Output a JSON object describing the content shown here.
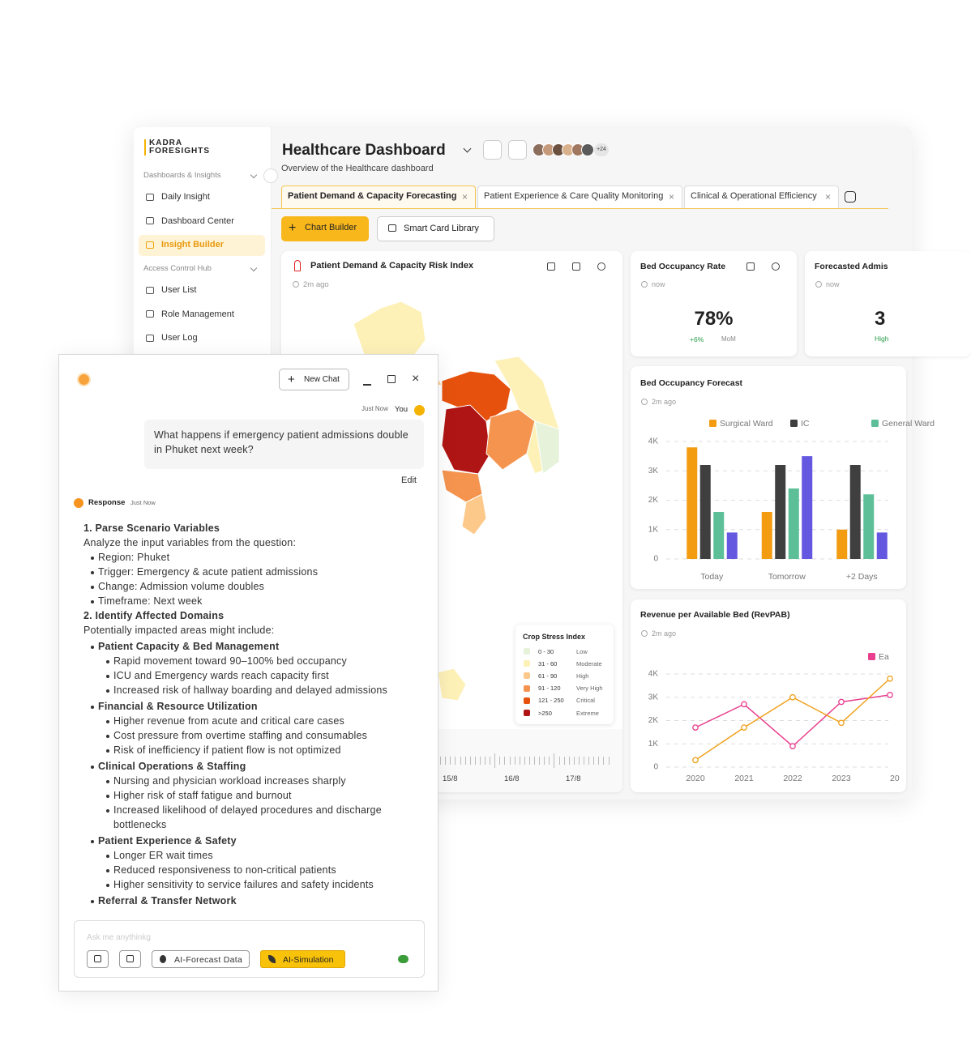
{
  "sidebar": {
    "logo": [
      "KADRA",
      "FORESIGHTS"
    ],
    "groups": [
      {
        "title": "Dashboards & Insights",
        "items": [
          "Daily Insight",
          "Dashboard Center",
          "Insight Builder"
        ],
        "active": 2
      },
      {
        "title": "Access Control Hub",
        "items": [
          "User List",
          "Role Management",
          "User Log"
        ]
      }
    ]
  },
  "header": {
    "title": "Healthcare Dashboard",
    "subtitle": "Overview of the Healthcare dashboard",
    "more_users": "+24"
  },
  "tabs": [
    "Patient Demand & Capacity Forecasting",
    "Patient Experience & Care Quality Monitoring",
    "Clinical & Operational Efficiency"
  ],
  "toolbar": [
    "Chart Builder",
    "Smart Card Library"
  ],
  "map_card": {
    "title": "Patient Demand & Capacity Risk Index",
    "time": "2m ago",
    "legend_title": "Crop Stress Index",
    "legend": [
      {
        "range": "0 - 30",
        "label": "Low",
        "color": "#e6f2d9"
      },
      {
        "range": "31 - 60",
        "label": "Moderate",
        "color": "#fdf1b8"
      },
      {
        "range": "61 - 90",
        "label": "High",
        "color": "#fcc98a"
      },
      {
        "range": "91 - 120",
        "label": "Very High",
        "color": "#f4944f"
      },
      {
        "range": "121 - 250",
        "label": "Critical",
        "color": "#e6520e"
      },
      {
        "range": ">250",
        "label": "Extreme",
        "color": "#b01515"
      }
    ],
    "timeline": [
      "15/8",
      "16/8",
      "17/8"
    ]
  },
  "kpis": [
    {
      "title": "Bed Occupancy Rate",
      "time": "now",
      "value": "78%",
      "change": "+6%",
      "period": "MoM"
    },
    {
      "title": "Forecasted Admis",
      "time": "now",
      "value": "3",
      "change": "High"
    }
  ],
  "bar_chart": {
    "type": "bar",
    "title": "Bed Occupancy Forecast",
    "time": "2m ago",
    "categories": [
      "Today",
      "Tomorrow",
      "+2 Days"
    ],
    "series": [
      {
        "name": "Surgical Ward",
        "color": "#f39c12",
        "values": [
          3800,
          1600,
          1000
        ]
      },
      {
        "name": "IC",
        "color": "#3f3f3f",
        "values": [
          3200,
          3200,
          3200
        ]
      },
      {
        "name": "General Ward",
        "color": "#5cbf98",
        "values": [
          1600,
          2400,
          2200
        ]
      },
      {
        "color": "#6457e0",
        "values": [
          900,
          3500,
          900
        ]
      }
    ],
    "ylim": [
      0,
      4000
    ],
    "yticks": [
      0,
      {
        "value": 1000,
        "label": "1K"
      },
      {
        "value": 2000,
        "label": "2K"
      },
      {
        "value": 3000,
        "label": "3K"
      },
      {
        "value": 4000,
        "label": "4K"
      }
    ],
    "grid": true
  },
  "line_chart": {
    "type": "line",
    "title": "Revenue per Available Bed (RevPAB)",
    "time": "2m ago",
    "categories": [
      "2020",
      "2021",
      "2022",
      "2023",
      "20"
    ],
    "series": [
      {
        "name": "Ea",
        "color": "#e8408f",
        "values": [
          1700,
          2700,
          900,
          2800,
          3100
        ]
      },
      {
        "color": "#f0a21e",
        "values": [
          300,
          1700,
          3000,
          1900,
          3800
        ]
      }
    ],
    "ylim": [
      0,
      4000
    ],
    "yticks": [
      0,
      {
        "value": 1000,
        "label": "1K"
      },
      {
        "value": 2000,
        "label": "2K"
      },
      {
        "value": 3000,
        "label": "3K"
      },
      {
        "value": 4000,
        "label": "4K"
      }
    ],
    "grid": true
  },
  "chat": {
    "new_chat": "New Chat",
    "question_time": "Just Now",
    "user": "You",
    "question": "What happens if emergency patient admissions double in Phuket next week?",
    "edit": "Edit",
    "response_label": "Response",
    "response_time": "Just Now",
    "response": [
      {
        "text": "1. Parse Scenario Variables",
        "level": 0,
        "bold": true
      },
      {
        "text": "Analyze the input variables from the question:",
        "level": 0
      },
      {
        "text": "Region: Phuket",
        "level": 1
      },
      {
        "text": "Trigger: Emergency & acute patient admissions",
        "level": 1
      },
      {
        "text": "Change: Admission volume doubles",
        "level": 1
      },
      {
        "text": "Timeframe: Next week",
        "level": 1
      },
      {
        "text": "2. Identify Affected Domains",
        "level": 0,
        "bold": true
      },
      {
        "text": "Potentially impacted areas might include:",
        "level": 0
      },
      {
        "text": "Patient Capacity & Bed Management",
        "level": 1,
        "bold": true
      },
      {
        "text": "Rapid movement toward 90–100% bed occupancy",
        "level": 2
      },
      {
        "text": "ICU and Emergency wards reach capacity first",
        "level": 2
      },
      {
        "text": "Increased risk of hallway boarding and delayed admissions",
        "level": 2
      },
      {
        "text": "Financial & Resource Utilization",
        "level": 1,
        "bold": true
      },
      {
        "text": "Higher revenue from acute and critical care cases",
        "level": 2
      },
      {
        "text": "Cost pressure from overtime staffing and consumables",
        "level": 2
      },
      {
        "text": "Risk of inefficiency if patient flow is not optimized",
        "level": 2
      },
      {
        "text": "Clinical Operations & Staffing",
        "level": 1,
        "bold": true
      },
      {
        "text": "Nursing and physician workload increases sharply",
        "level": 2
      },
      {
        "text": "Higher risk of staff fatigue and burnout",
        "level": 2
      },
      {
        "text": "Increased likelihood of delayed procedures and discharge bottlenecks",
        "level": 2
      },
      {
        "text": "Patient Experience & Safety",
        "level": 1,
        "bold": true
      },
      {
        "text": "Longer ER wait times",
        "level": 2
      },
      {
        "text": "Reduced responsiveness to non-critical patients",
        "level": 2
      },
      {
        "text": "Higher sensitivity to service failures and safety incidents",
        "level": 2
      },
      {
        "text": "Referral & Transfer Network",
        "level": 1,
        "bold": true
      }
    ],
    "input_placeholder": "Ask me anythinkg",
    "input_buttons": [
      "AI-Forecast Data",
      "AI-Simulation"
    ]
  }
}
